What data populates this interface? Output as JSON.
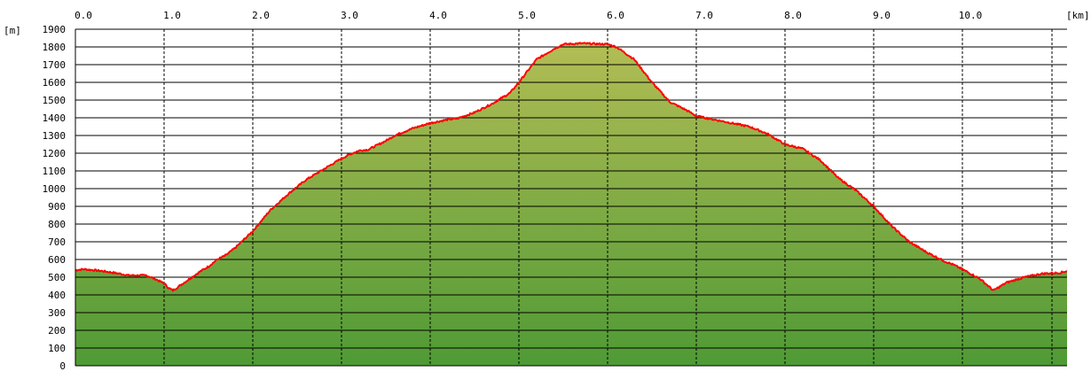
{
  "chart_data": {
    "type": "area",
    "title": "",
    "x_unit_label": "[km]",
    "y_unit_label": "[m]",
    "xlim": [
      0,
      11.18
    ],
    "ylim": [
      0,
      1900
    ],
    "x_ticks": [
      0,
      1,
      2,
      3,
      4,
      5,
      6,
      7,
      8,
      9,
      10
    ],
    "x_tick_labels": [
      "0.0",
      "1.0",
      "2.0",
      "3.0",
      "4.0",
      "5.0",
      "6.0",
      "7.0",
      "8.0",
      "9.0",
      "10.0"
    ],
    "y_ticks": [
      0,
      100,
      200,
      300,
      400,
      500,
      600,
      700,
      800,
      900,
      1000,
      1100,
      1200,
      1300,
      1400,
      1500,
      1600,
      1700,
      1800,
      1900
    ],
    "y_tick_labels": [
      "0",
      "100",
      "200",
      "300",
      "400",
      "500",
      "600",
      "700",
      "800",
      "900",
      "1000",
      "1100",
      "1200",
      "1300",
      "1400",
      "1500",
      "1600",
      "1700",
      "1800",
      "1900"
    ],
    "grid": {
      "horizontal": "solid",
      "vertical": "dashed"
    },
    "legend": "none",
    "colors": {
      "line": "#ff0000",
      "fill_top": "#b3bd55",
      "fill_bottom": "#4f9a35",
      "grid": "#000000",
      "background": "#ffffff"
    },
    "series": [
      {
        "x": [
          0,
          0.1,
          0.3,
          0.5,
          0.6,
          0.8,
          0.9,
          1.0,
          1.05,
          1.1,
          1.2,
          1.4,
          1.5,
          1.6,
          1.7,
          1.8,
          2.0,
          2.2,
          2.4,
          2.5,
          2.6,
          2.8,
          3.0,
          3.1,
          3.2,
          3.3,
          3.5,
          3.6,
          3.8,
          4.0,
          4.2,
          4.3,
          4.5,
          4.7,
          4.9,
          5.0,
          5.2,
          5.4,
          5.5,
          5.7,
          6.0,
          6.1,
          6.3,
          6.5,
          6.7,
          6.9,
          7.0,
          7.2,
          7.4,
          7.6,
          7.8,
          8.0,
          8.2,
          8.4,
          8.6,
          8.8,
          9.0,
          9.2,
          9.4,
          9.6,
          9.8,
          9.9,
          10.0,
          10.2,
          10.35,
          10.5,
          10.7,
          10.9,
          11.1,
          11.18
        ],
        "y": [
          540,
          545,
          535,
          520,
          510,
          510,
          490,
          465,
          440,
          425,
          460,
          530,
          560,
          600,
          625,
          665,
          760,
          880,
          970,
          1010,
          1050,
          1110,
          1170,
          1195,
          1215,
          1220,
          1270,
          1300,
          1340,
          1370,
          1390,
          1395,
          1430,
          1480,
          1540,
          1600,
          1730,
          1790,
          1815,
          1820,
          1815,
          1800,
          1730,
          1600,
          1490,
          1440,
          1410,
          1390,
          1370,
          1350,
          1310,
          1250,
          1225,
          1160,
          1060,
          990,
          900,
          790,
          700,
          640,
          590,
          570,
          545,
          490,
          425,
          470,
          500,
          520,
          525,
          535
        ]
      }
    ]
  }
}
